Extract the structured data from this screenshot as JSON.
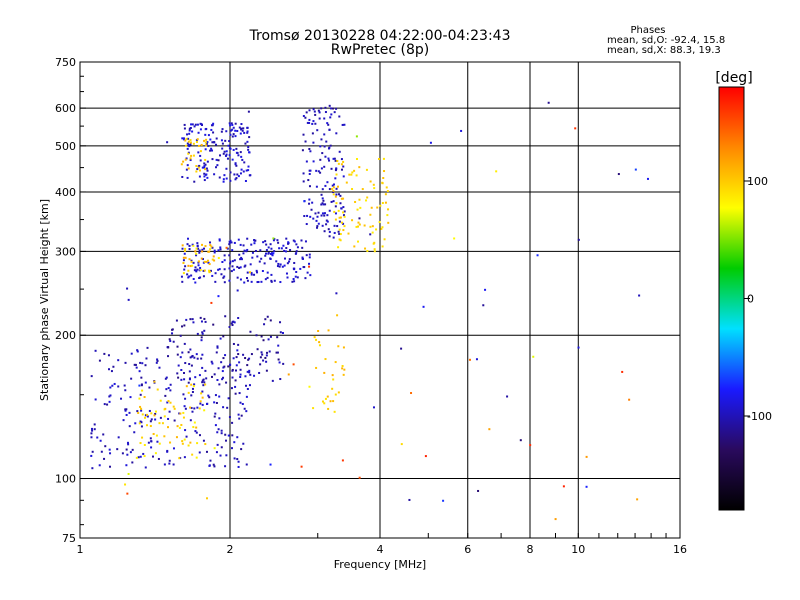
{
  "chart_data": {
    "type": "scatter",
    "title": "Tromsø 20130228 04:22:00-04:23:43",
    "subtitle": "RwPretec (8p)",
    "xlabel": "Frequency [MHz]",
    "ylabel": "Stationary phase Virtual Height [km]",
    "x_scale": "log",
    "y_scale": "log",
    "xlim": [
      1,
      16
    ],
    "ylim": [
      75,
      750
    ],
    "x_ticks": [
      1,
      2,
      4,
      6,
      8,
      10,
      16
    ],
    "y_ticks": [
      75,
      100,
      200,
      300,
      400,
      500,
      600,
      750
    ],
    "x_gridlines": [
      2,
      4,
      6,
      8,
      10
    ],
    "y_gridlines": [
      100,
      200,
      300,
      400,
      500,
      600
    ],
    "grid": true,
    "info": {
      "header": "Phases",
      "line1": "mean, sd,O: -92.4, 15.8",
      "line2": "mean, sd,X: 88.3, 19.3"
    },
    "colorbar": {
      "label": "[deg]",
      "range": [
        -180,
        180
      ],
      "ticks": [
        100,
        0,
        -100
      ],
      "stops": [
        "#000000",
        "#2a0a5e",
        "#1a1aff",
        "#00e0ff",
        "#00cc00",
        "#ffff00",
        "#ff8800",
        "#ff0000"
      ]
    },
    "clusters": [
      {
        "name": "o-low-trace",
        "x": [
          1.05,
          2.2
        ],
        "y": [
          105,
          190
        ],
        "n": 260,
        "phase": -100,
        "spread": 12
      },
      {
        "name": "o-low-mix",
        "x": [
          1.3,
          1.8
        ],
        "y": [
          110,
          160
        ],
        "n": 70,
        "phase": 95,
        "spread": 15
      },
      {
        "name": "o-mid-trace",
        "x": [
          1.5,
          2.6
        ],
        "y": [
          160,
          220
        ],
        "n": 120,
        "phase": -105,
        "spread": 14
      },
      {
        "name": "o-F-trace",
        "x": [
          1.6,
          2.9
        ],
        "y": [
          258,
          320
        ],
        "n": 220,
        "phase": -95,
        "spread": 10
      },
      {
        "name": "o-F-yellow",
        "x": [
          1.6,
          1.9
        ],
        "y": [
          270,
          310
        ],
        "n": 40,
        "phase": 100,
        "spread": 20
      },
      {
        "name": "o-upper",
        "x": [
          1.6,
          2.2
        ],
        "y": [
          420,
          560
        ],
        "n": 170,
        "phase": -95,
        "spread": 12
      },
      {
        "name": "o-upper-yellow",
        "x": [
          1.6,
          1.8
        ],
        "y": [
          440,
          520
        ],
        "n": 30,
        "phase": 100,
        "spread": 10
      },
      {
        "name": "o-cusp",
        "x": [
          2.8,
          3.4
        ],
        "y": [
          320,
          610
        ],
        "n": 150,
        "phase": -100,
        "spread": 10
      },
      {
        "name": "x-cusp",
        "x": [
          3.2,
          4.2
        ],
        "y": [
          300,
          470
        ],
        "n": 90,
        "phase": 95,
        "spread": 12
      },
      {
        "name": "x-mid",
        "x": [
          2.9,
          3.4
        ],
        "y": [
          130,
          205
        ],
        "n": 30,
        "phase": 100,
        "spread": 12
      },
      {
        "name": "scattered-o",
        "x": [
          1.1,
          14
        ],
        "y": [
          85,
          620
        ],
        "n": 40,
        "phase": -95,
        "spread": 30
      },
      {
        "name": "scattered-x",
        "x": [
          1.1,
          15
        ],
        "y": [
          80,
          600
        ],
        "n": 35,
        "phase": 110,
        "spread": 60
      }
    ]
  }
}
